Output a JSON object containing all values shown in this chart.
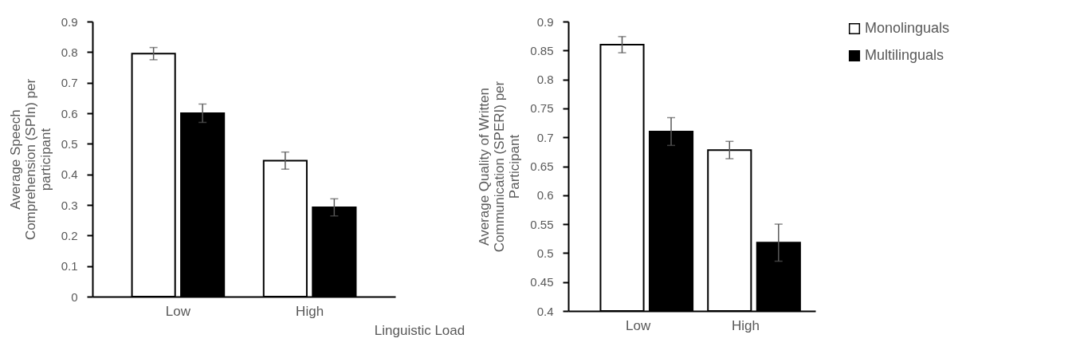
{
  "chart_data": [
    {
      "type": "bar",
      "categories": [
        "Low",
        "High"
      ],
      "xlabel": "Linguistic Load",
      "ylabel": "Average Speech Comprehension (SPIn)  per participant",
      "ylim": [
        0,
        0.9
      ],
      "yticks": [
        0,
        0.1,
        0.2,
        0.3,
        0.4,
        0.5,
        0.6,
        0.7,
        0.8,
        0.9
      ],
      "grid": false,
      "legend": false,
      "series": [
        {
          "color": "#ffffff",
          "values": [
            0.795,
            0.445
          ],
          "errors": [
            0.02,
            0.028
          ]
        },
        {
          "color": "#000000",
          "values": [
            0.6,
            0.292
          ],
          "errors": [
            0.03,
            0.028
          ]
        }
      ]
    },
    {
      "type": "bar",
      "categories": [
        "Low",
        "High"
      ],
      "ylabel": "Average Quality of Written Communication (SPERI) per Participant",
      "ylim": [
        0.4,
        0.9
      ],
      "yticks": [
        0.4,
        0.45,
        0.5,
        0.55,
        0.6,
        0.65,
        0.7,
        0.75,
        0.8,
        0.85,
        0.9
      ],
      "grid": false,
      "legend": "right",
      "series": [
        {
          "name": "Monolinguals",
          "color": "#ffffff",
          "values": [
            0.86,
            0.678
          ],
          "errors": [
            0.014,
            0.015
          ]
        },
        {
          "name": "Multilinguals",
          "color": "#000000",
          "values": [
            0.71,
            0.518
          ],
          "errors": [
            0.024,
            0.032
          ]
        }
      ]
    }
  ]
}
